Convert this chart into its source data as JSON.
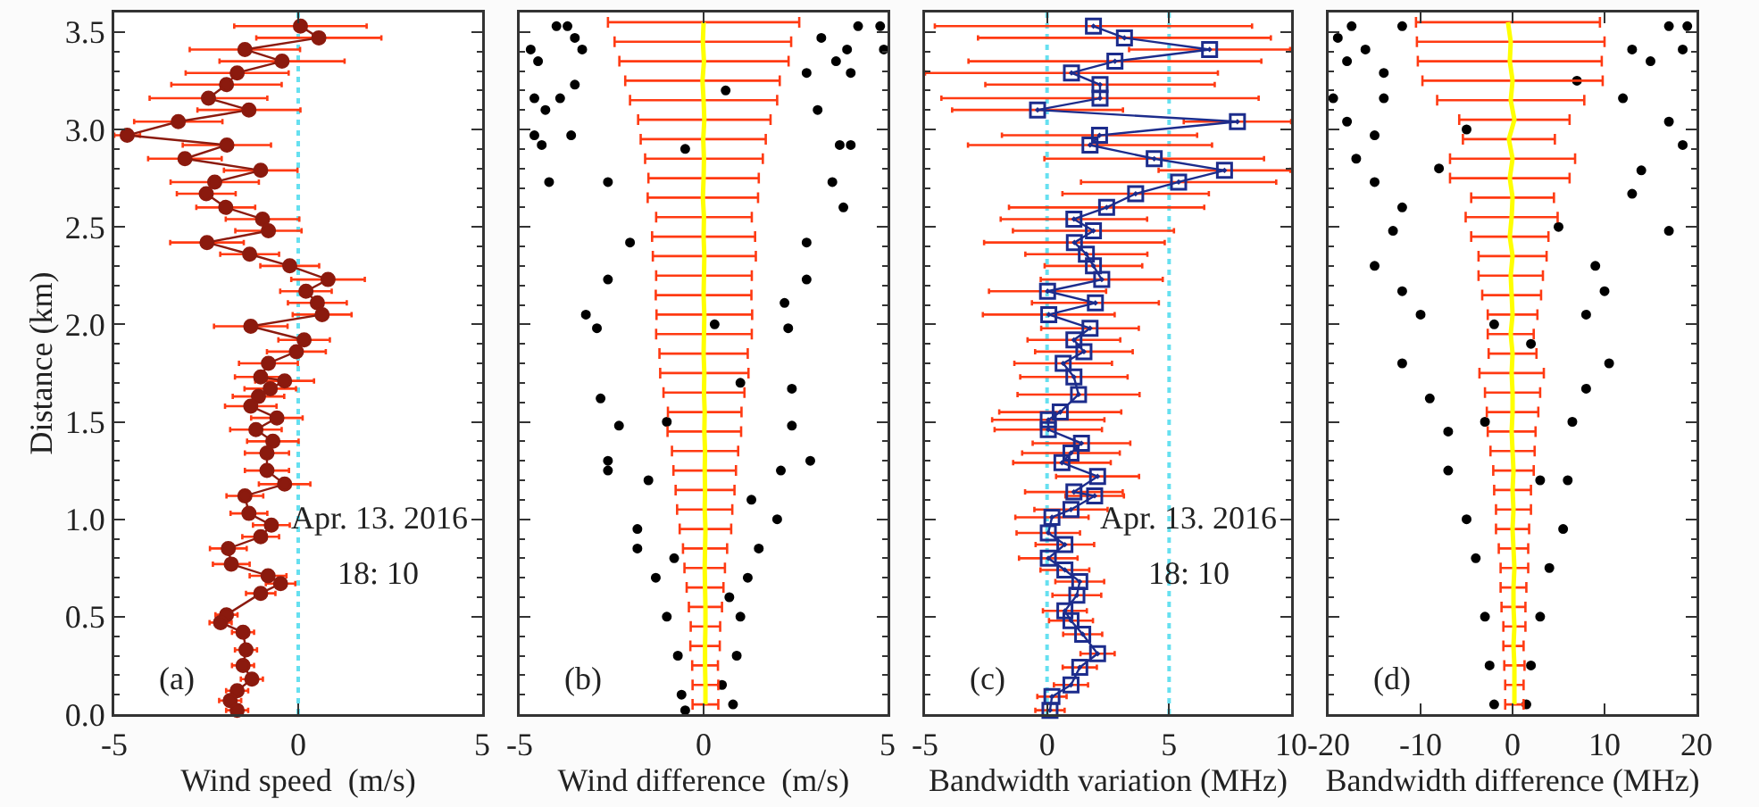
{
  "chart_data": [
    {
      "type": "line",
      "marker": "circle",
      "line_style": "solid",
      "xlabel": "Wind speed  (m/s)",
      "ylabel": "Distance (km)",
      "xlim": [
        -5,
        5
      ],
      "xticks": [
        -5,
        0,
        5
      ],
      "ylim": [
        0,
        3.6
      ],
      "yticks": [
        {
          "value": 0,
          "label": "0.0"
        },
        {
          "value": 0.5,
          "label": "0.5"
        },
        {
          "value": 1,
          "label": "1.0"
        },
        1.5,
        {
          "value": 2,
          "label": "2.0"
        },
        2.5,
        {
          "value": 3,
          "label": "3.0"
        },
        3.5
      ],
      "ref_lines": [
        {
          "axis": "x",
          "value": 0,
          "color": "#66e0f0",
          "line_style": "dotted"
        }
      ],
      "annotations": [
        "(a)",
        "Apr. 13. 2016",
        "18: 10"
      ],
      "series": [
        {
          "color": "#8b1a0e",
          "x": [
            0.06,
            0.56,
            -1.45,
            -0.44,
            -1.66,
            -1.95,
            -2.44,
            -1.34,
            -3.26,
            -4.65,
            -1.94,
            -3.08,
            -1.02,
            -2.27,
            -2.5,
            -1.97,
            -0.97,
            -0.81,
            -2.48,
            -1.32,
            -0.23,
            0.81,
            0.21,
            0.52,
            0.65,
            -1.29,
            0.16,
            -0.05,
            -0.81,
            -1.02,
            -0.37,
            -0.76,
            -1.08,
            -1.29,
            -0.58,
            -1.15,
            -0.69,
            -0.85,
            -0.85,
            -0.37,
            -1.45,
            -1.34,
            -0.73,
            -1.02,
            -1.9,
            -1.82,
            -0.82,
            -0.48,
            -1.02,
            -1.95,
            -2.11,
            -1.5,
            -1.42,
            -1.5,
            -1.26,
            -1.66,
            -1.85,
            -1.66
          ],
          "values": [
            3.53,
            3.47,
            3.41,
            3.35,
            3.29,
            3.23,
            3.16,
            3.1,
            3.04,
            2.97,
            2.92,
            2.85,
            2.79,
            2.73,
            2.67,
            2.6,
            2.54,
            2.48,
            2.42,
            2.36,
            2.3,
            2.23,
            2.17,
            2.11,
            2.05,
            1.99,
            1.92,
            1.86,
            1.8,
            1.73,
            1.71,
            1.67,
            1.63,
            1.58,
            1.52,
            1.46,
            1.4,
            1.34,
            1.25,
            1.18,
            1.12,
            1.03,
            0.97,
            0.91,
            0.85,
            0.77,
            0.71,
            0.67,
            0.62,
            0.51,
            0.47,
            0.42,
            0.33,
            0.25,
            0.18,
            0.12,
            0.07,
            0.02
          ],
          "xerrors": [
            1.8,
            1.7,
            1.5,
            1.7,
            1.4,
            1.5,
            1.6,
            1.4,
            1.2,
            0.35,
            1.2,
            1.0,
            1.0,
            1.2,
            0.8,
            0.8,
            1.0,
            0.9,
            1.0,
            0.8,
            0.8,
            1.0,
            0.7,
            0.8,
            0.8,
            1.0,
            0.7,
            0.8,
            0.8,
            0.7,
            0.8,
            0.7,
            0.7,
            0.7,
            0.7,
            0.7,
            0.7,
            0.6,
            0.6,
            0.7,
            0.5,
            0.5,
            0.5,
            0.5,
            0.5,
            0.5,
            0.5,
            0.4,
            0.4,
            0.3,
            0.3,
            0.3,
            0.3,
            0.3,
            0.3,
            0.3,
            0.3,
            0.3
          ]
        }
      ]
    },
    {
      "type": "scatter",
      "marker": "circle",
      "xlabel": "Wind difference  (m/s)",
      "xlim": [
        -5,
        5
      ],
      "xticks": [
        -5,
        0,
        5
      ],
      "ylim": [
        0,
        3.6
      ],
      "yticks": [
        0,
        0.5,
        1,
        1.5,
        2,
        2.5,
        3,
        3.5
      ],
      "tick_labels": "x",
      "annotations": [
        "(b)"
      ],
      "series": [
        {
          "color": "#000000",
          "x": [
            -4.0,
            -3.7,
            4.2,
            4.8,
            -3.5,
            3.2,
            -4.7,
            -3.3,
            3.9,
            4.9,
            -4.5,
            3.6,
            -3.5,
            2.8,
            -4.6,
            -3.9,
            3.1,
            -4.3,
            4.0,
            -3.6,
            -4.6,
            4.0,
            -4.4,
            3.7,
            -2.6,
            3.5,
            -4.2,
            3.8,
            -2.0,
            2.8,
            -2.6,
            2.8,
            -3.2,
            2.2,
            -2.9,
            2.3,
            -2.8,
            2.4,
            -2.3,
            2.4,
            -2.6,
            2.9,
            -2.6,
            2.1,
            -1.8,
            2.0,
            -1.8,
            1.5,
            -1.3,
            1.2,
            -1.0,
            1.0,
            -0.7,
            0.9,
            -0.6,
            0.8,
            -0.5,
            0.5,
            -1.5,
            1.3,
            -0.8,
            0.7,
            0.3,
            -0.5,
            0.6,
            -1.0,
            1.0
          ],
          "values": [
            3.53,
            3.53,
            3.53,
            3.53,
            3.47,
            3.47,
            3.41,
            3.41,
            3.41,
            3.41,
            3.35,
            3.35,
            3.23,
            3.29,
            3.16,
            3.16,
            3.1,
            3.1,
            3.29,
            2.97,
            2.97,
            2.92,
            2.92,
            2.92,
            2.73,
            2.73,
            2.73,
            2.6,
            2.42,
            2.42,
            2.23,
            2.23,
            2.05,
            2.11,
            1.98,
            1.98,
            1.62,
            1.67,
            1.48,
            1.48,
            1.3,
            1.3,
            1.25,
            1.25,
            0.95,
            1.0,
            0.85,
            0.85,
            0.7,
            0.7,
            0.5,
            0.5,
            0.3,
            0.3,
            0.1,
            0.05,
            0.02,
            0.15,
            1.2,
            1.1,
            0.8,
            0.6,
            2.0,
            2.9,
            3.2,
            1.5,
            1.7
          ]
        },
        {
          "type": "line",
          "marker": "none",
          "color": "#ffff00",
          "x": [
            0.05,
            0.05,
            0.04,
            0.04,
            0.05,
            0.05,
            0.04,
            0.03,
            0.04,
            0.05,
            0.03,
            0.04,
            0.03,
            0.04,
            0.02,
            0.03,
            0.01,
            0.02,
            0.0,
            0.01,
            0.02,
            0.0,
            0.01,
            0.02,
            0.0,
            0.01,
            -0.02,
            0.0,
            0.01,
            -0.01,
            0.02,
            0.0,
            -0.03,
            0.01,
            -0.02,
            0.0
          ],
          "values": [
            0.05,
            0.15,
            0.25,
            0.35,
            0.45,
            0.55,
            0.65,
            0.75,
            0.85,
            0.95,
            1.05,
            1.15,
            1.25,
            1.35,
            1.45,
            1.55,
            1.65,
            1.75,
            1.85,
            1.95,
            2.05,
            2.15,
            2.25,
            2.35,
            2.45,
            2.55,
            2.65,
            2.75,
            2.85,
            2.95,
            3.05,
            3.15,
            3.25,
            3.35,
            3.45,
            3.55
          ],
          "xerrors": [
            0.35,
            0.35,
            0.35,
            0.4,
            0.4,
            0.45,
            0.5,
            0.55,
            0.6,
            0.7,
            0.75,
            0.8,
            0.85,
            0.9,
            1.0,
            1.0,
            1.1,
            1.2,
            1.2,
            1.3,
            1.3,
            1.3,
            1.3,
            1.4,
            1.4,
            1.3,
            1.5,
            1.5,
            1.6,
            1.7,
            1.8,
            2.0,
            2.1,
            2.3,
            2.4,
            2.6
          ]
        }
      ]
    },
    {
      "type": "line",
      "marker": "square",
      "line_style": "solid",
      "xlabel": "Bandwidth variation (MHz)",
      "xlim": [
        -5,
        10
      ],
      "xticks": [
        -5,
        0,
        5,
        10
      ],
      "ylim": [
        0,
        3.6
      ],
      "yticks": [
        0,
        0.5,
        1,
        1.5,
        2,
        2.5,
        3,
        3.5
      ],
      "tick_labels": "x",
      "ref_lines": [
        {
          "axis": "x",
          "value": 0,
          "color": "#66e0f0",
          "line_style": "dotted"
        },
        {
          "axis": "x",
          "value": 5,
          "color": "#66e0f0",
          "line_style": "dotted"
        }
      ],
      "annotations": [
        "(c)",
        "Apr. 13. 2016",
        "18: 10"
      ],
      "series": [
        {
          "color": "#1c2c8c",
          "x": [
            1.9,
            3.17,
            6.66,
            2.78,
            1.0,
            2.17,
            2.17,
            -0.39,
            7.8,
            2.15,
            1.76,
            4.39,
            7.27,
            5.39,
            3.63,
            2.44,
            1.1,
            1.9,
            1.12,
            1.61,
            1.9,
            2.24,
            0.02,
            1.98,
            0.07,
            1.76,
            1.1,
            1.51,
            0.66,
            1.1,
            1.29,
            0.54,
            0.05,
            0.05,
            1.41,
            0.98,
            0.61,
            2.07,
            1.1,
            1.95,
            0.98,
            0.2,
            0.05,
            0.73,
            0.05,
            0.73,
            1.34,
            1.22,
            0.73,
            0.98,
            1.46,
            2.07,
            1.34,
            0.98,
            0.2,
            0.12
          ],
          "values": [
            3.53,
            3.47,
            3.41,
            3.35,
            3.29,
            3.23,
            3.16,
            3.1,
            3.04,
            2.97,
            2.92,
            2.85,
            2.79,
            2.73,
            2.67,
            2.6,
            2.54,
            2.48,
            2.42,
            2.36,
            2.3,
            2.23,
            2.17,
            2.11,
            2.05,
            1.98,
            1.92,
            1.86,
            1.8,
            1.73,
            1.64,
            1.55,
            1.51,
            1.46,
            1.39,
            1.34,
            1.29,
            1.22,
            1.14,
            1.12,
            1.05,
            1.01,
            0.93,
            0.87,
            0.8,
            0.74,
            0.68,
            0.61,
            0.53,
            0.48,
            0.41,
            0.31,
            0.24,
            0.15,
            0.09,
            0.02
          ],
          "xerrors": [
            6.5,
            6.0,
            3.3,
            6.0,
            6.0,
            4.7,
            6.5,
            3.5,
            2.2,
            4.0,
            5.0,
            4.5,
            2.7,
            4.0,
            3.0,
            4.0,
            3.0,
            3.3,
            3.7,
            2.5,
            2.0,
            2.5,
            2.4,
            2.6,
            2.7,
            2.0,
            1.9,
            2.0,
            2.0,
            2.2,
            2.5,
            2.5,
            2.3,
            2.2,
            2.0,
            2.0,
            2.0,
            1.7,
            2.0,
            1.2,
            1.5,
            1.5,
            1.3,
            1.2,
            1.2,
            1.0,
            1.0,
            1.0,
            0.9,
            0.9,
            0.8,
            0.7,
            0.7,
            0.7,
            0.6,
            0.6
          ]
        }
      ]
    },
    {
      "type": "scatter",
      "marker": "circle",
      "xlabel": "Bandwidth difference (MHz)",
      "xlim": [
        -20,
        20
      ],
      "xticks": [
        -20,
        -10,
        0,
        10,
        20
      ],
      "ylim": [
        0,
        3.6
      ],
      "yticks": [
        0,
        0.5,
        1,
        1.5,
        2,
        2.5,
        3,
        3.5
      ],
      "tick_labels": "x",
      "annotations": [
        "(d)"
      ],
      "series": [
        {
          "color": "#000000",
          "x": [
            -17.5,
            -12,
            17,
            19,
            -19,
            -16,
            18.5,
            13,
            -18,
            -14,
            15,
            -19.5,
            -14,
            12,
            -18,
            -15,
            17,
            -17,
            18.5,
            -15,
            14,
            -12,
            13,
            -13,
            17,
            -15,
            9,
            -12,
            10,
            -10,
            8,
            -12,
            10.5,
            -9,
            8,
            -7,
            6.5,
            -7,
            6,
            -5,
            5.5,
            -4,
            4,
            -3,
            3,
            -2.5,
            2,
            -2,
            1.5,
            -5,
            5,
            -3,
            3,
            -8,
            7,
            -2,
            2
          ],
          "values": [
            3.53,
            3.53,
            3.53,
            3.53,
            3.47,
            3.41,
            3.41,
            3.41,
            3.35,
            3.29,
            3.35,
            3.16,
            3.16,
            3.16,
            3.04,
            2.97,
            3.04,
            2.85,
            2.92,
            2.73,
            2.79,
            2.6,
            2.67,
            2.48,
            2.48,
            2.3,
            2.3,
            2.17,
            2.17,
            2.05,
            2.05,
            1.8,
            1.8,
            1.62,
            1.67,
            1.45,
            1.5,
            1.25,
            1.2,
            1.0,
            0.95,
            0.8,
            0.75,
            0.5,
            0.5,
            0.25,
            0.25,
            0.05,
            0.05,
            3.0,
            2.5,
            1.5,
            1.2,
            2.8,
            3.25,
            2.0,
            1.9
          ]
        },
        {
          "type": "line",
          "marker": "none",
          "color": "#ffff00",
          "x": [
            0.2,
            0.2,
            0.2,
            0.1,
            0.2,
            0.1,
            0.1,
            0.2,
            0.1,
            0.0,
            0.1,
            0.0,
            0.1,
            0.0,
            -0.1,
            0.0,
            0.0,
            -0.1,
            0.0,
            -0.2,
            0.0,
            -0.1,
            -0.2,
            0.0,
            -0.3,
            -0.1,
            0.0,
            -0.3,
            0.0,
            -0.4,
            0.2,
            -0.2,
            0.0,
            -0.3,
            -0.2,
            -0.5
          ],
          "values": [
            0.05,
            0.15,
            0.25,
            0.35,
            0.45,
            0.55,
            0.65,
            0.75,
            0.85,
            0.95,
            1.05,
            1.15,
            1.25,
            1.35,
            1.45,
            1.55,
            1.65,
            1.75,
            1.85,
            1.95,
            2.05,
            2.15,
            2.25,
            2.35,
            2.45,
            2.55,
            2.65,
            2.75,
            2.85,
            2.95,
            3.05,
            3.15,
            3.25,
            3.35,
            3.45,
            3.55
          ],
          "xerrors": [
            1.0,
            1.0,
            1.1,
            1.1,
            1.2,
            1.3,
            1.4,
            1.5,
            1.6,
            1.8,
            1.9,
            2.0,
            2.2,
            2.4,
            2.6,
            2.8,
            3.0,
            3.5,
            2.6,
            2.5,
            2.7,
            3.2,
            3.5,
            3.7,
            4.2,
            5.0,
            4.5,
            6.5,
            6.8,
            5.0,
            6.0,
            8.0,
            9.8,
            10.0,
            10.2,
            10.0
          ]
        }
      ]
    }
  ]
}
